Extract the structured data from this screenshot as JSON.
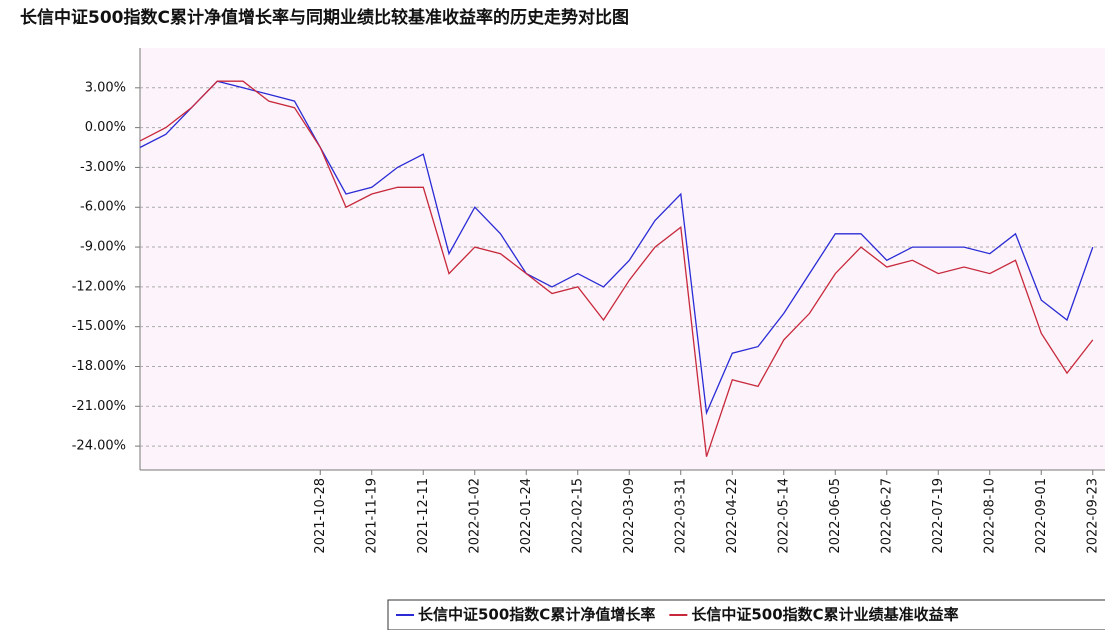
{
  "chart_data": {
    "type": "line",
    "title": "长信中证500指数C累计净值增长率与同期业绩比较基准收益率的历史走势对比图",
    "categories": [
      null,
      null,
      null,
      null,
      null,
      null,
      null,
      "2021-10-28",
      null,
      "2021-11-19",
      null,
      "2021-12-11",
      null,
      "2022-01-02",
      null,
      "2022-01-24",
      null,
      "2022-02-15",
      null,
      "2022-03-09",
      null,
      "2022-03-31",
      null,
      "2022-04-22",
      null,
      "2022-05-14",
      null,
      "2022-06-05",
      null,
      "2022-06-27",
      null,
      "2022-07-19",
      null,
      "2022-08-10",
      null,
      "2022-09-01",
      null,
      "2022-09-23"
    ],
    "series": [
      {
        "name": "长信中证500指数C累计净值增长率",
        "color": "#2b2bd6",
        "values": [
          -1.5,
          -0.5,
          1.5,
          3.5,
          3,
          2.5,
          2,
          -1.5,
          -5,
          -4.5,
          -3,
          -2,
          -9.5,
          -6,
          -8,
          -11,
          -12,
          -11,
          -12,
          -10,
          -7,
          -5,
          -21.5,
          -17,
          -16.5,
          -14,
          -11,
          -8,
          -8,
          -10,
          -9,
          -9,
          -9,
          -9.5,
          -8,
          -13,
          -14.5,
          -9
        ]
      },
      {
        "name": "长信中证500指数C累计业绩基准收益率",
        "color": "#c8283c",
        "values": [
          -1,
          0,
          1.5,
          3.5,
          3.5,
          2,
          1.5,
          -1.5,
          -6,
          -5,
          -4.5,
          -4.5,
          -11,
          -9,
          -9.5,
          -11,
          -12.5,
          -12,
          -14.5,
          -11.5,
          -9,
          -7.5,
          -24.8,
          -19,
          -19.5,
          -16,
          -14,
          -11,
          -9,
          -10.5,
          -10,
          -11,
          -10.5,
          -11,
          -10,
          -15.5,
          -18.5,
          -16
        ]
      }
    ],
    "ylim": [
      -25.8,
      6
    ],
    "yticks": [
      {
        "value": 3,
        "label": "3.00%"
      },
      {
        "value": 0,
        "label": "0.00%"
      },
      {
        "value": -3,
        "label": "-3.00%"
      },
      {
        "value": -6,
        "label": "-6.00%"
      },
      {
        "value": -9,
        "label": "-9.00%"
      },
      {
        "value": -12,
        "label": "-12.00%"
      },
      {
        "value": -15,
        "label": "-15.00%"
      },
      {
        "value": -18,
        "label": "-18.00%"
      },
      {
        "value": -21,
        "label": "-21.00%"
      },
      {
        "value": -24,
        "label": "-24.00%"
      }
    ],
    "grid": true
  }
}
